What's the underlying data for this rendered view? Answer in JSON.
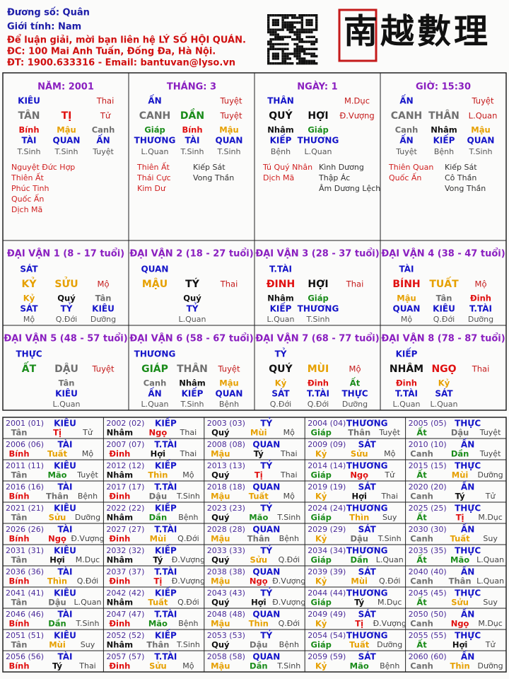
{
  "header": {
    "owner": "Đương số: Quân",
    "gender": "Giới tính:  Nam",
    "contact": "Để luận giải, mời bạn liên hệ LÝ SỐ HỘI QUÁN.",
    "address": "ĐC: 100 Mai Anh Tuấn, Đống Đa, Hà Nội.",
    "phone": "ĐT: 1900.633316 - Email: bantuvan@lyso.vn",
    "logo": "南越數理"
  },
  "element_colors": {
    "tân": "#707070",
    "canh": "#707070",
    "thân": "#707070",
    "dậu": "#707070",
    "nhâm": "#111111",
    "quý": "#111111",
    "tý": "#111111",
    "hợi": "#111111",
    "giáp": "#1a8c1a",
    "ất": "#1a8c1a",
    "dần": "#1a8c1a",
    "mão": "#1a8c1a",
    "bính": "#e01010",
    "đinh": "#e01010",
    "tị": "#e01010",
    "ngọ": "#e01010",
    "mậu": "#e6a000",
    "kỷ": "#e6a000",
    "thìn": "#e6a000",
    "tuất": "#e6a000",
    "sửu": "#e6a000",
    "mùi": "#e6a000"
  },
  "pillars": [
    {
      "title": "NĂM: 2001",
      "god": "KIÊU",
      "stage": "Thai",
      "stem": "TÂN",
      "branch": "TỊ",
      "branch_stage": "Tử",
      "hidden_stems": [
        "Bính",
        "Mậu",
        "Canh"
      ],
      "hidden_gods": [
        "TÀI",
        "QUAN",
        "ẤN"
      ],
      "hidden_stages": [
        "T.Sinh",
        "T.Sinh",
        "Tuyệt"
      ],
      "stars_left": [
        "Nguyệt Đức Hợp",
        "Thiên Ất",
        "Phúc Tinh",
        "Quốc Ấn",
        "Dịch Mã"
      ]
    },
    {
      "title": "THÁNG: 3",
      "god": "ẤN",
      "stage": "Tuyệt",
      "stem": "CANH",
      "branch": "DẦN",
      "branch_stage": "Tuyệt",
      "hidden_stems": [
        "Giáp",
        "Bính",
        "Mậu"
      ],
      "hidden_gods": [
        "THƯƠNG",
        "TÀI",
        "QUAN"
      ],
      "hidden_stages": [
        "L.Quan",
        "T.Sinh",
        "T.Sinh"
      ],
      "stars_left": [
        "Thiên Ất",
        "Thái Cực",
        "Kim Dư"
      ],
      "stars_right": [
        "Kiếp Sát",
        "Vong Thần"
      ]
    },
    {
      "title": "NGÀY: 1",
      "god": "THÂN",
      "stage": "M.Dục",
      "stem": "QUÝ",
      "branch": "HỢI",
      "branch_stage": "Đ.Vượng",
      "hidden_stems": [
        "Nhâm",
        "Giáp"
      ],
      "hidden_gods": [
        "KIẾP",
        "THƯƠNG"
      ],
      "hidden_stages": [
        "Bệnh",
        "L.Quan"
      ],
      "stars_left": [
        "Tú Quý Nhân",
        "Dịch Mã"
      ],
      "stars_right": [
        "Kình Dương",
        "Thập Ác",
        "Âm Dương Lệch"
      ]
    },
    {
      "title": "GIỜ: 15:30",
      "god": "ẤN",
      "stage": "Tuyệt",
      "stem": "CANH",
      "branch": "THÂN",
      "branch_stage": "L.Quan",
      "hidden_stems": [
        "Canh",
        "Nhâm",
        "Mậu"
      ],
      "hidden_gods": [
        "ẤN",
        "KIẾP",
        "QUAN"
      ],
      "hidden_stages": [
        "Tuyệt",
        "Bệnh",
        "T.Sinh"
      ],
      "stars_left": [
        "Thiên Quan",
        "Quốc Ấn"
      ],
      "stars_right": [
        "Kiếp Sát",
        "Cô Thần",
        "Vong Thần"
      ]
    }
  ],
  "luck": [
    {
      "title": "ĐẠI VẬN 1 (8 - 17 tuổi)",
      "god": "SÁT",
      "stem": "KỶ",
      "branch": "SỬU",
      "stage": "Mộ",
      "hidden_stems": [
        "Kỷ",
        "Quý",
        "Tân"
      ],
      "hidden_gods": [
        "SÁT",
        "TỶ",
        "KIÊU"
      ],
      "hidden_stages": [
        "Mộ",
        "Q.Đới",
        "Dưỡng"
      ]
    },
    {
      "title": "ĐẠI VẬN 2 (18 - 27 tuổi)",
      "god": "QUAN",
      "stem": "MẬU",
      "branch": "TÝ",
      "stage": "Thai",
      "hidden_stems": [
        "Quý"
      ],
      "hidden_gods": [
        "TỶ"
      ],
      "hidden_stages": [
        "L.Quan"
      ]
    },
    {
      "title": "ĐẠI VẬN 3 (28 - 37 tuổi)",
      "god": "T.TÀI",
      "stem": "ĐINH",
      "branch": "HỢI",
      "stage": "Thai",
      "hidden_stems": [
        "Nhâm",
        "Giáp"
      ],
      "hidden_gods": [
        "KIẾP",
        "THƯƠNG"
      ],
      "hidden_stages": [
        "L.Quan",
        "T.Sinh"
      ]
    },
    {
      "title": "ĐẠI VẬN 4 (38 - 47 tuổi)",
      "god": "TÀI",
      "stem": "BÍNH",
      "branch": "TUẤT",
      "stage": "Mộ",
      "hidden_stems": [
        "Mậu",
        "Tân",
        "Đinh"
      ],
      "hidden_gods": [
        "QUAN",
        "KIÊU",
        "T.TÀI"
      ],
      "hidden_stages": [
        "Mộ",
        "Q.Đới",
        "Dưỡng"
      ]
    },
    {
      "title": "ĐẠI VẬN 5 (48 - 57 tuổi)",
      "god": "THỰC",
      "stem": "ẤT",
      "branch": "DẬU",
      "stage": "Tuyệt",
      "hidden_stems": [
        "Tân"
      ],
      "hidden_gods": [
        "KIÊU"
      ],
      "hidden_stages": [
        "L.Quan"
      ]
    },
    {
      "title": "ĐẠI VẬN 6 (58 - 67 tuổi)",
      "god": "THƯƠNG",
      "stem": "GIÁP",
      "branch": "THÂN",
      "stage": "Tuyệt",
      "hidden_stems": [
        "Canh",
        "Nhâm",
        "Mậu"
      ],
      "hidden_gods": [
        "ẤN",
        "KIẾP",
        "QUAN"
      ],
      "hidden_stages": [
        "L.Quan",
        "T.Sinh",
        "Bệnh"
      ]
    },
    {
      "title": "ĐẠI VẬN 7 (68 - 77 tuổi)",
      "god": "TỶ",
      "stem": "QUÝ",
      "branch": "MÙI",
      "stage": "Mộ",
      "hidden_stems": [
        "Kỷ",
        "Đinh",
        "Ất"
      ],
      "hidden_gods": [
        "SÁT",
        "T.TÀI",
        "THỰC"
      ],
      "hidden_stages": [
        "Q.Đới",
        "Q.Đới",
        "Dưỡng"
      ]
    },
    {
      "title": "ĐẠI VẬN 8 (78 - 87 tuổi)",
      "god": "KIẾP",
      "stem": "NHÂM",
      "branch": "NGỌ",
      "stage": "Thai",
      "hidden_stems": [
        "Đinh",
        "Kỷ"
      ],
      "hidden_gods": [
        "T.TÀI",
        "SÁT"
      ],
      "hidden_stages": [
        "L.Quan",
        "L.Quan"
      ]
    }
  ],
  "years": [
    [
      "2001 (01)",
      "KIÊU",
      "Tân",
      "Tị",
      "Tử"
    ],
    [
      "2002 (02)",
      "KIẾP",
      "Nhâm",
      "Ngọ",
      "Thai"
    ],
    [
      "2003 (03)",
      "TỶ",
      "Quý",
      "Mùi",
      "Mộ"
    ],
    [
      "2004 (04)",
      "THƯƠNG",
      "Giáp",
      "Thân",
      "Tuyệt"
    ],
    [
      "2005 (05)",
      "THỰC",
      "Ất",
      "Dậu",
      "Tuyệt"
    ],
    [
      "2006 (06)",
      "TÀI",
      "Bính",
      "Tuất",
      "Mộ"
    ],
    [
      "2007 (07)",
      "T.TÀI",
      "Đinh",
      "Hợi",
      "Thai"
    ],
    [
      "2008 (08)",
      "QUAN",
      "Mậu",
      "Tý",
      "Thai"
    ],
    [
      "2009 (09)",
      "SÁT",
      "Kỷ",
      "Sửu",
      "Mộ"
    ],
    [
      "2010 (10)",
      "ẤN",
      "Canh",
      "Dần",
      "Tuyệt"
    ],
    [
      "2011 (11)",
      "KIÊU",
      "Tân",
      "Mão",
      "Tuyệt"
    ],
    [
      "2012 (12)",
      "KIẾP",
      "Nhâm",
      "Thìn",
      "Mộ"
    ],
    [
      "2013 (13)",
      "TỶ",
      "Quý",
      "Tị",
      "Thai"
    ],
    [
      "2014 (14)",
      "THƯƠNG",
      "Giáp",
      "Ngọ",
      "Tử"
    ],
    [
      "2015 (15)",
      "THỰC",
      "Ất",
      "Mùi",
      "Dưỡng"
    ],
    [
      "2016 (16)",
      "TÀI",
      "Bính",
      "Thân",
      "Bệnh"
    ],
    [
      "2017 (17)",
      "T.TÀI",
      "Đinh",
      "Dậu",
      "T.Sinh"
    ],
    [
      "2018 (18)",
      "QUAN",
      "Mậu",
      "Tuất",
      "Mộ"
    ],
    [
      "2019 (19)",
      "SÁT",
      "Kỷ",
      "Hợi",
      "Thai"
    ],
    [
      "2020 (20)",
      "ẤN",
      "Canh",
      "Tý",
      "Tử"
    ],
    [
      "2021 (21)",
      "KIÊU",
      "Tân",
      "Sửu",
      "Dưỡng"
    ],
    [
      "2022 (22)",
      "KIẾP",
      "Nhâm",
      "Dần",
      "Bệnh"
    ],
    [
      "2023 (23)",
      "TỶ",
      "Quý",
      "Mão",
      "T.Sinh"
    ],
    [
      "2024 (24)",
      "THƯƠNG",
      "Giáp",
      "Thìn",
      "Suy"
    ],
    [
      "2025 (25)",
      "THỰC",
      "Ất",
      "Tị",
      "M.Dục"
    ],
    [
      "2026 (26)",
      "TÀI",
      "Bính",
      "Ngọ",
      "Đ.Vượng"
    ],
    [
      "2027 (27)",
      "T.TÀI",
      "Đinh",
      "Mùi",
      "Q.Đới"
    ],
    [
      "2028 (28)",
      "QUAN",
      "Mậu",
      "Thân",
      "Bệnh"
    ],
    [
      "2029 (29)",
      "SÁT",
      "Kỷ",
      "Dậu",
      "T.Sinh"
    ],
    [
      "2030 (30)",
      "ẤN",
      "Canh",
      "Tuất",
      "Suy"
    ],
    [
      "2031 (31)",
      "KIÊU",
      "Tân",
      "Hợi",
      "M.Dục"
    ],
    [
      "2032 (32)",
      "KIẾP",
      "Nhâm",
      "Tý",
      "Đ.Vượng"
    ],
    [
      "2033 (33)",
      "TỶ",
      "Quý",
      "Sửu",
      "Q.Đới"
    ],
    [
      "2034 (34)",
      "THƯƠNG",
      "Giáp",
      "Dần",
      "L.Quan"
    ],
    [
      "2035 (35)",
      "THỰC",
      "Ất",
      "Mão",
      "L.Quan"
    ],
    [
      "2036 (36)",
      "TÀI",
      "Bính",
      "Thìn",
      "Q.Đới"
    ],
    [
      "2037 (37)",
      "T.TÀI",
      "Đinh",
      "Tị",
      "Đ.Vượng"
    ],
    [
      "2038 (38)",
      "QUAN",
      "Mậu",
      "Ngọ",
      "Đ.Vượng"
    ],
    [
      "2039 (39)",
      "SÁT",
      "Kỷ",
      "Mùi",
      "Q.Đới"
    ],
    [
      "2040 (40)",
      "ẤN",
      "Canh",
      "Thân",
      "L.Quan"
    ],
    [
      "2041 (41)",
      "KIÊU",
      "Tân",
      "Dậu",
      "L.Quan"
    ],
    [
      "2042 (42)",
      "KIẾP",
      "Nhâm",
      "Tuất",
      "Q.Đới"
    ],
    [
      "2043 (43)",
      "TỶ",
      "Quý",
      "Hợi",
      "Đ.Vượng"
    ],
    [
      "2044 (44)",
      "THƯƠNG",
      "Giáp",
      "Tý",
      "M.Dục"
    ],
    [
      "2045 (45)",
      "THỰC",
      "Ất",
      "Sửu",
      "Suy"
    ],
    [
      "2046 (46)",
      "TÀI",
      "Bính",
      "Dần",
      "T.Sinh"
    ],
    [
      "2047 (47)",
      "T.TÀI",
      "Đinh",
      "Mão",
      "Bệnh"
    ],
    [
      "2048 (48)",
      "QUAN",
      "Mậu",
      "Thìn",
      "Q.Đới"
    ],
    [
      "2049 (49)",
      "SÁT",
      "Kỷ",
      "Tị",
      "Đ.Vượng"
    ],
    [
      "2050 (50)",
      "ẤN",
      "Canh",
      "Ngọ",
      "M.Dục"
    ],
    [
      "2051 (51)",
      "KIÊU",
      "Tân",
      "Mùi",
      "Suy"
    ],
    [
      "2052 (52)",
      "KIẾP",
      "Nhâm",
      "Thân",
      "T.Sinh"
    ],
    [
      "2053 (53)",
      "TỶ",
      "Quý",
      "Dậu",
      "Bệnh"
    ],
    [
      "2054 (54)",
      "THƯƠNG",
      "Giáp",
      "Tuất",
      "Dưỡng"
    ],
    [
      "2055 (55)",
      "THỰC",
      "Ất",
      "Hợi",
      "Tử"
    ],
    [
      "2056 (56)",
      "TÀI",
      "Bính",
      "Tý",
      "Thai"
    ],
    [
      "2057 (57)",
      "T.TÀI",
      "Đinh",
      "Sửu",
      "Mộ"
    ],
    [
      "2058 (58)",
      "QUAN",
      "Mậu",
      "Dần",
      "T.Sinh"
    ],
    [
      "2059 (59)",
      "SÁT",
      "Kỷ",
      "Mão",
      "Bệnh"
    ],
    [
      "2060 (60)",
      "ẤN",
      "Canh",
      "Thìn",
      "Dưỡng"
    ]
  ]
}
